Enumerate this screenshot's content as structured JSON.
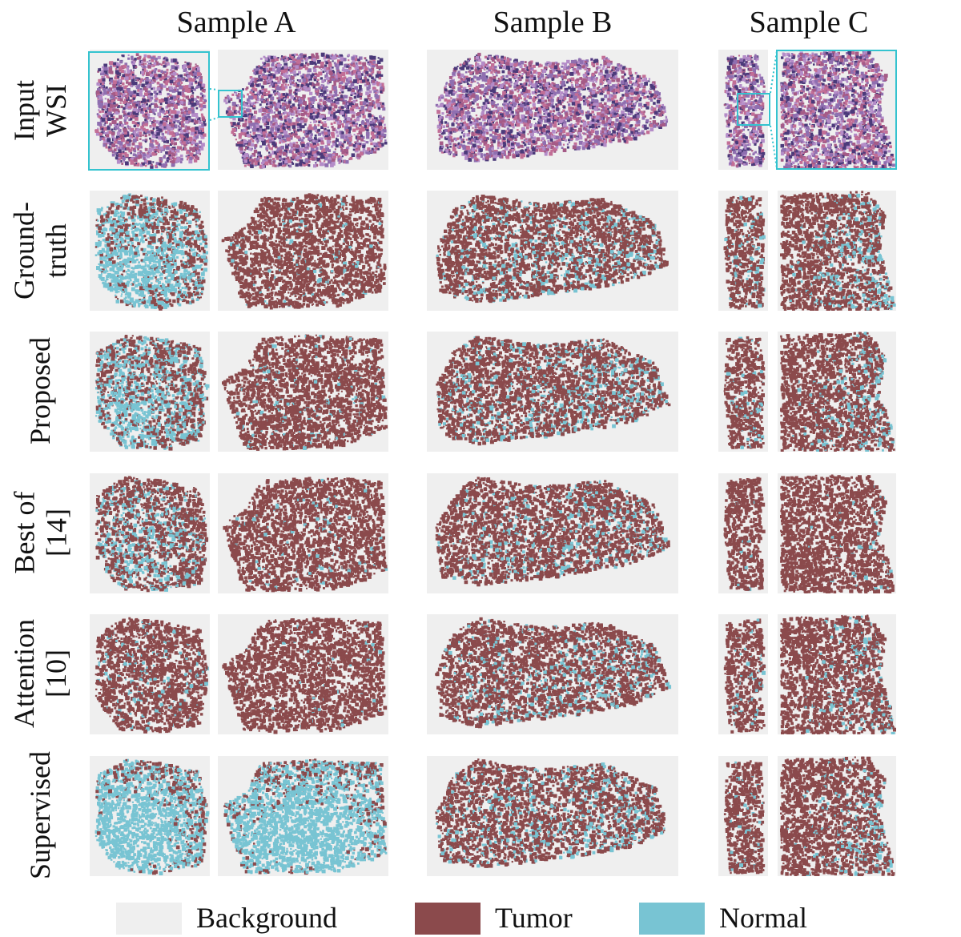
{
  "columns": [
    "Sample A",
    "Sample B",
    "Sample C"
  ],
  "rows": [
    {
      "id": "input",
      "lines": [
        "Input",
        "WSI"
      ]
    },
    {
      "id": "gt",
      "lines": [
        "Ground-",
        "truth"
      ]
    },
    {
      "id": "proposed",
      "lines": [
        "Proposed"
      ]
    },
    {
      "id": "best14",
      "lines": [
        "Best of",
        "[14]"
      ]
    },
    {
      "id": "attention",
      "lines": [
        "Attention",
        "[10]"
      ]
    },
    {
      "id": "supervised",
      "lines": [
        "Supervised"
      ]
    }
  ],
  "legend": [
    {
      "label": "Background",
      "color": "#efefef"
    },
    {
      "label": "Tumor",
      "color": "#8b4a4c"
    },
    {
      "label": "Normal",
      "color": "#78c4d3"
    }
  ],
  "colors": {
    "tumor": "#8b4a4c",
    "normal": "#78c4d3",
    "background": "#efefef",
    "he_purple": "#8f6fb0",
    "he_pink": "#c26e96",
    "he_dark": "#4b3a7a",
    "zoom": "#34c3cf"
  },
  "normal_fraction": {
    "input": null,
    "gt": [
      0.6,
      0.05,
      0.2,
      0.18,
      0.3
    ],
    "proposed": [
      0.5,
      0.05,
      0.2,
      0.08,
      0.2
    ],
    "best14": [
      0.3,
      0.04,
      0.15,
      0.03,
      0.05
    ],
    "attention": [
      0.08,
      0.02,
      0.15,
      0.1,
      0.15
    ],
    "supervised": [
      0.85,
      0.8,
      0.22,
      0.08,
      0.22
    ]
  }
}
